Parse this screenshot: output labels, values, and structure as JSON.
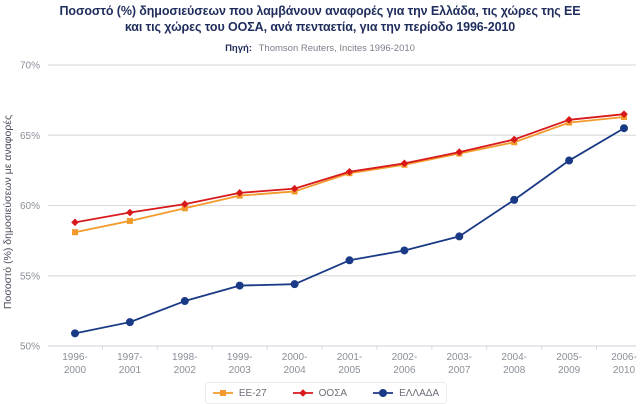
{
  "chart_data": {
    "type": "line",
    "title": "Ποσοστό (%) δημοσιεύσεων που λαμβάνουν αναφορές για την Ελλάδα, τις χώρες της ΕΕ και τις χώρες του ΟΟΣΑ, ανά πενταετία, για την περίοδο 1996-2010",
    "title_lines": [
      "Ποσοστό (%) δημοσιεύσεων που λαμβάνουν αναφορές για την Ελλάδα, τις χώρες της ΕΕ",
      "και τις χώρες του ΟΟΣΑ, ανά πενταετία, για την περίοδο 1996-2010"
    ],
    "source_label": "Πηγή:",
    "source_text": "Thomson Reuters, Incites 1996-2010",
    "xlabel": "",
    "ylabel": "Ποσοστό (%) δημοσιεύσεων με αναφορές",
    "categories": [
      [
        "1996-",
        "2000"
      ],
      [
        "1997-",
        "2001"
      ],
      [
        "1998-",
        "2002"
      ],
      [
        "1999-",
        "2003"
      ],
      [
        "2000-",
        "2004"
      ],
      [
        "2001-",
        "2005"
      ],
      [
        "2002-",
        "2006"
      ],
      [
        "2003-",
        "2007"
      ],
      [
        "2004-",
        "2008"
      ],
      [
        "2005-",
        "2009"
      ],
      [
        "2006-",
        "2010"
      ]
    ],
    "ylim": [
      50,
      70
    ],
    "yticks": [
      50,
      55,
      60,
      65,
      70
    ],
    "ytick_labels": [
      "50%",
      "55%",
      "60%",
      "65%",
      "70%"
    ],
    "grid": true,
    "legend_position": "bottom-center",
    "series": [
      {
        "name": "ΕΕ-27",
        "color": "#f39a2c",
        "marker": "square",
        "values": [
          58.1,
          58.9,
          59.8,
          60.7,
          61.0,
          62.3,
          62.9,
          63.7,
          64.5,
          65.9,
          66.3
        ]
      },
      {
        "name": "ΟΟΣΑ",
        "color": "#d7191c",
        "marker": "diamond",
        "values": [
          58.8,
          59.5,
          60.1,
          60.9,
          61.2,
          62.4,
          63.0,
          63.8,
          64.7,
          66.1,
          66.5
        ]
      },
      {
        "name": "ΕΛΛΑΔΑ",
        "color": "#1b3a86",
        "marker": "circle",
        "values": [
          50.9,
          51.7,
          53.2,
          54.3,
          54.4,
          56.1,
          56.8,
          57.8,
          60.4,
          63.2,
          65.5
        ]
      }
    ]
  }
}
